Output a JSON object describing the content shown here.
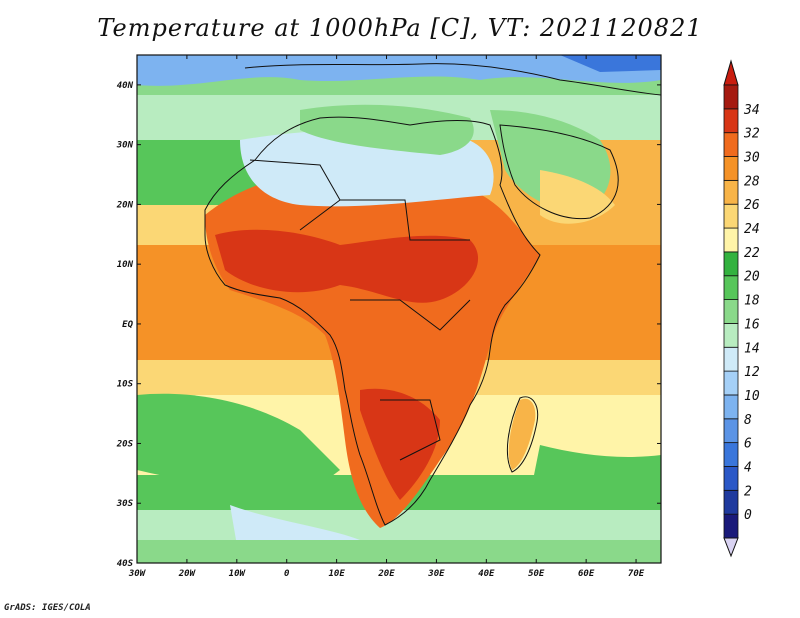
{
  "title": "Temperature at 1000hPa [C], VT: 2021120821",
  "credit": "GrADS: IGES/COLA",
  "map": {
    "lon_range": [
      -30,
      75
    ],
    "lat_range": [
      -40,
      45
    ],
    "lon_ticks": [
      {
        "lon": -30,
        "label": "30W"
      },
      {
        "lon": -20,
        "label": "20W"
      },
      {
        "lon": -10,
        "label": "10W"
      },
      {
        "lon": 0,
        "label": "0"
      },
      {
        "lon": 10,
        "label": "10E"
      },
      {
        "lon": 20,
        "label": "20E"
      },
      {
        "lon": 30,
        "label": "30E"
      },
      {
        "lon": 40,
        "label": "40E"
      },
      {
        "lon": 50,
        "label": "50E"
      },
      {
        "lon": 60,
        "label": "60E"
      },
      {
        "lon": 70,
        "label": "70E"
      }
    ],
    "lat_ticks": [
      {
        "lat": 40,
        "label": "40N"
      },
      {
        "lat": 30,
        "label": "30N"
      },
      {
        "lat": 20,
        "label": "20N"
      },
      {
        "lat": 10,
        "label": "10N"
      },
      {
        "lat": 0,
        "label": "EQ"
      },
      {
        "lat": -10,
        "label": "10S"
      },
      {
        "lat": -20,
        "label": "20S"
      },
      {
        "lat": -30,
        "label": "30S"
      },
      {
        "lat": -40,
        "label": "40S"
      }
    ]
  },
  "colorbar": {
    "unit": "C",
    "labels": [
      "0",
      "2",
      "4",
      "6",
      "8",
      "10",
      "12",
      "14",
      "16",
      "18",
      "20",
      "22",
      "24",
      "26",
      "28",
      "30",
      "32",
      "34"
    ],
    "colors": [
      "#1a1a7a",
      "#1f3a9e",
      "#2b58c7",
      "#3a76db",
      "#5b94e6",
      "#7db3f0",
      "#a5d0f7",
      "#cfeaf8",
      "#b8ecc0",
      "#8ad98a",
      "#57c65a",
      "#33b23f",
      "#fff4a8",
      "#fbd775",
      "#f8b448",
      "#f59227",
      "#f06b1e",
      "#d83616",
      "#a51a10"
    ],
    "low_extend": "#d9d3f2",
    "high_extend": "#c91d0f"
  }
}
